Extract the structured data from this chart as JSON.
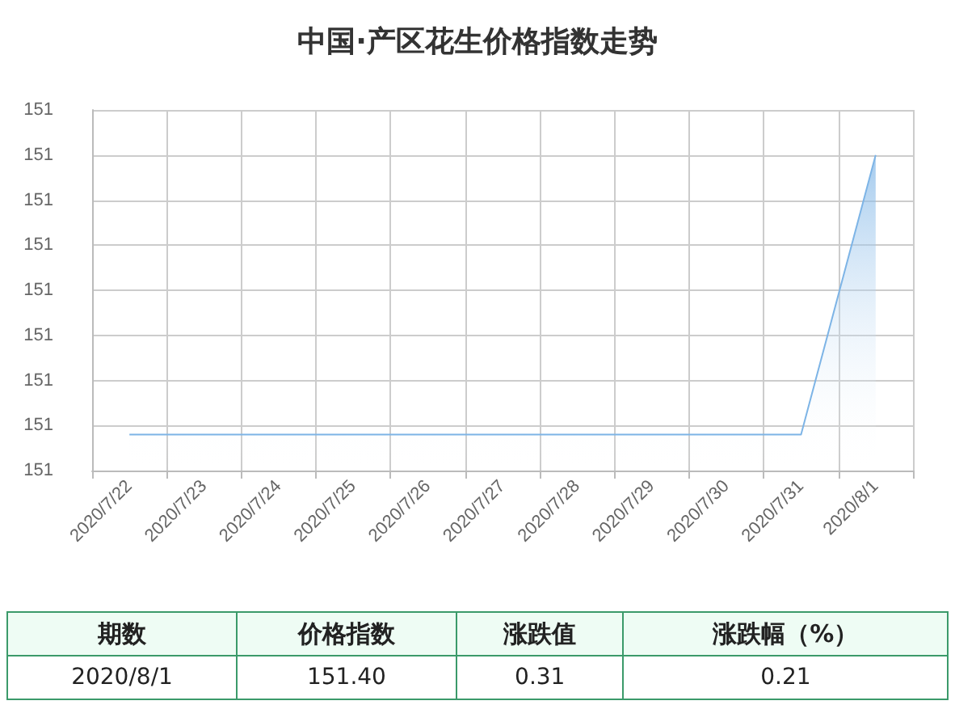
{
  "chart_data": {
    "type": "area",
    "title": "中国·产区花生价格指数走势",
    "categories": [
      "2020/7/22",
      "2020/7/23",
      "2020/7/24",
      "2020/7/25",
      "2020/7/26",
      "2020/7/27",
      "2020/7/28",
      "2020/7/29",
      "2020/7/30",
      "2020/7/31",
      "2020/8/1"
    ],
    "series": [
      {
        "color": "#7db4e6",
        "values": [
          151.09,
          151.09,
          151.09,
          151.09,
          151.09,
          151.09,
          151.09,
          151.09,
          151.09,
          151.09,
          151.4
        ]
      }
    ],
    "ylim": [
      151.05,
      151.45
    ],
    "yticks": [
      {
        "value": 151.05,
        "label": "151"
      },
      {
        "value": 151.1,
        "label": "151"
      },
      {
        "value": 151.15,
        "label": "151"
      },
      {
        "value": 151.2,
        "label": "151"
      },
      {
        "value": 151.25,
        "label": "151"
      },
      {
        "value": 151.3,
        "label": "151"
      },
      {
        "value": 151.35,
        "label": "151"
      },
      {
        "value": 151.4,
        "label": "151"
      },
      {
        "value": 151.45,
        "label": "151"
      }
    ],
    "grid": true,
    "marker": "none",
    "annotations": [
      "期数",
      "价格指数",
      "涨跌值",
      "涨跌幅（%）",
      "2020/8/1",
      "151.40",
      "0.31",
      "0.21"
    ]
  }
}
